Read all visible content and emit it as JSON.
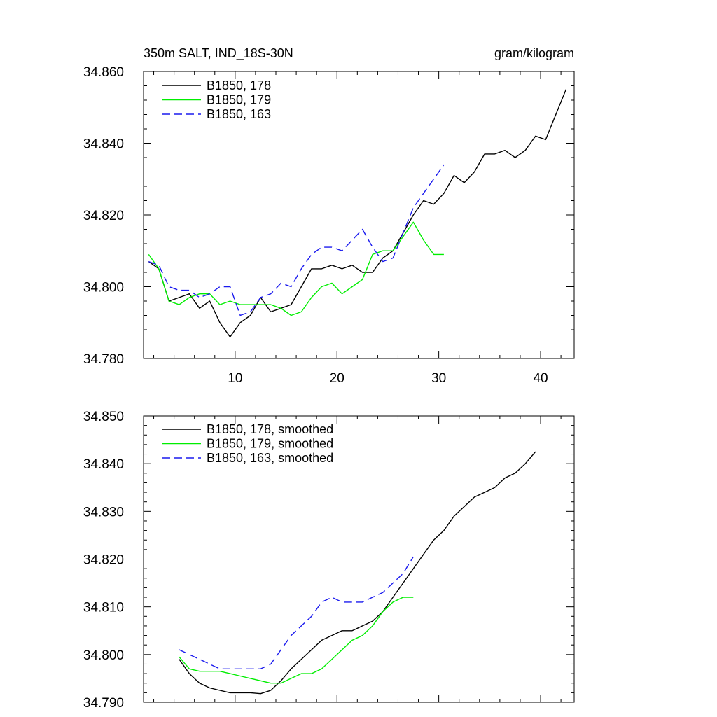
{
  "chart_data": [
    {
      "type": "line",
      "title": "350m SALT, IND_18S-30N",
      "units": "gram/kilogram",
      "xlim": [
        1,
        43.3
      ],
      "ylim": [
        34.78,
        34.86
      ],
      "xticks": [
        10,
        20,
        30,
        40
      ],
      "xtick_labels": [
        "10",
        "20",
        "30",
        "40"
      ],
      "yticks": [
        34.78,
        34.8,
        34.82,
        34.84,
        34.86
      ],
      "ytick_labels": [
        "34.780",
        "34.800",
        "34.820",
        "34.840",
        "34.860"
      ],
      "series": [
        {
          "name": "B1850, 178",
          "color": "#000000",
          "dashed": false,
          "x": [
            1.5,
            2.5,
            3.5,
            4.5,
            5.5,
            6.5,
            7.5,
            8.5,
            9.5,
            10.5,
            11.5,
            12.5,
            13.5,
            14.5,
            15.5,
            16.5,
            17.5,
            18.5,
            19.5,
            20.5,
            21.5,
            22.5,
            23.5,
            24.5,
            25.5,
            26.5,
            27.5,
            28.5,
            29.5,
            30.5,
            31.5,
            32.5,
            33.5,
            34.5,
            35.5,
            36.5,
            37.5,
            38.5,
            39.5,
            40.5,
            41.5,
            42.5
          ],
          "values": [
            34.807,
            34.805,
            34.796,
            34.797,
            34.798,
            34.794,
            34.796,
            34.79,
            34.786,
            34.79,
            34.792,
            34.797,
            34.793,
            34.794,
            34.795,
            34.8,
            34.805,
            34.805,
            34.806,
            34.805,
            34.806,
            34.804,
            34.804,
            34.808,
            34.81,
            34.815,
            34.82,
            34.824,
            34.823,
            34.826,
            34.831,
            34.829,
            34.832,
            34.837,
            34.837,
            34.838,
            34.836,
            34.838,
            34.842,
            34.841,
            34.848,
            34.855
          ]
        },
        {
          "name": "B1850, 179",
          "color": "#00ee00",
          "dashed": false,
          "x": [
            1.5,
            2.5,
            3.5,
            4.5,
            5.5,
            6.5,
            7.5,
            8.5,
            9.5,
            10.5,
            11.5,
            12.5,
            13.5,
            14.5,
            15.5,
            16.5,
            17.5,
            18.5,
            19.5,
            20.5,
            21.5,
            22.5,
            23.5,
            24.5,
            25.5,
            26.5,
            27.5,
            28.5,
            29.5,
            30.5
          ],
          "values": [
            34.809,
            34.805,
            34.796,
            34.795,
            34.797,
            34.798,
            34.798,
            34.795,
            34.796,
            34.795,
            34.795,
            34.795,
            34.795,
            34.794,
            34.792,
            34.793,
            34.797,
            34.8,
            34.801,
            34.798,
            34.8,
            34.802,
            34.809,
            34.81,
            34.81,
            34.814,
            34.818,
            34.813,
            34.809,
            34.809
          ]
        },
        {
          "name": "B1850, 163",
          "color": "#1a1aee",
          "dashed": true,
          "x": [
            1.5,
            2.5,
            3.5,
            4.5,
            5.5,
            6.5,
            7.5,
            8.5,
            9.5,
            10.5,
            11.5,
            12.5,
            13.5,
            14.5,
            15.5,
            16.5,
            17.5,
            18.5,
            19.5,
            20.5,
            21.5,
            22.5,
            23.5,
            24.5,
            25.5,
            26.5,
            27.5,
            28.5,
            29.5,
            30.5
          ],
          "values": [
            34.807,
            34.806,
            34.8,
            34.799,
            34.799,
            34.797,
            34.798,
            34.8,
            34.8,
            34.792,
            34.793,
            34.797,
            34.798,
            34.801,
            34.8,
            34.805,
            34.809,
            34.811,
            34.811,
            34.81,
            34.813,
            34.816,
            34.811,
            34.807,
            34.808,
            34.815,
            34.822,
            34.826,
            34.83,
            34.834
          ]
        }
      ]
    },
    {
      "type": "line",
      "title": "",
      "xlim": [
        1,
        43.3
      ],
      "ylim": [
        34.79,
        34.85
      ],
      "xticks": [
        10,
        20,
        30,
        40
      ],
      "xtick_labels": [],
      "yticks": [
        34.79,
        34.8,
        34.81,
        34.82,
        34.83,
        34.84,
        34.85
      ],
      "ytick_labels": [
        "34.790",
        "34.800",
        "34.810",
        "34.820",
        "34.830",
        "34.840",
        "34.850"
      ],
      "series": [
        {
          "name": "B1850, 178, smoothed",
          "color": "#000000",
          "dashed": false,
          "x": [
            4.5,
            5.5,
            6.5,
            7.5,
            8.5,
            9.5,
            10.5,
            11.5,
            12.5,
            13.5,
            14.5,
            15.5,
            16.5,
            17.5,
            18.5,
            19.5,
            20.5,
            21.5,
            22.5,
            23.5,
            24.5,
            25.5,
            26.5,
            27.5,
            28.5,
            29.5,
            30.5,
            31.5,
            32.5,
            33.5,
            34.5,
            35.5,
            36.5,
            37.5,
            38.5,
            39.5
          ],
          "values": [
            34.799,
            34.796,
            34.794,
            34.793,
            34.7925,
            34.792,
            34.792,
            34.792,
            34.7918,
            34.7925,
            34.7945,
            34.797,
            34.799,
            34.801,
            34.803,
            34.804,
            34.805,
            34.805,
            34.806,
            34.807,
            34.809,
            34.812,
            34.815,
            34.818,
            34.821,
            34.824,
            34.826,
            34.829,
            34.831,
            34.833,
            34.834,
            34.835,
            34.837,
            34.838,
            34.84,
            34.8425
          ]
        },
        {
          "name": "B1850, 179, smoothed",
          "color": "#00ee00",
          "dashed": false,
          "x": [
            4.5,
            5.5,
            6.5,
            7.5,
            8.5,
            9.5,
            10.5,
            11.5,
            12.5,
            13.5,
            14.5,
            15.5,
            16.5,
            17.5,
            18.5,
            19.5,
            20.5,
            21.5,
            22.5,
            23.5,
            24.5,
            25.5,
            26.5,
            27.5
          ],
          "values": [
            34.7995,
            34.797,
            34.7965,
            34.7965,
            34.7965,
            34.796,
            34.7955,
            34.795,
            34.7945,
            34.794,
            34.794,
            34.795,
            34.796,
            34.796,
            34.797,
            34.799,
            34.801,
            34.803,
            34.804,
            34.806,
            34.809,
            34.811,
            34.812,
            34.812
          ]
        },
        {
          "name": "B1850, 163, smoothed",
          "color": "#1a1aee",
          "dashed": true,
          "x": [
            4.5,
            5.5,
            6.5,
            7.5,
            8.5,
            9.5,
            10.5,
            11.5,
            12.5,
            13.5,
            14.5,
            15.5,
            16.5,
            17.5,
            18.5,
            19.5,
            20.5,
            21.5,
            22.5,
            23.5,
            24.5,
            25.5,
            26.5,
            27.5
          ],
          "values": [
            34.801,
            34.8,
            34.799,
            34.798,
            34.797,
            34.797,
            34.797,
            34.797,
            34.797,
            34.798,
            34.801,
            34.804,
            34.806,
            34.808,
            34.811,
            34.812,
            34.811,
            34.811,
            34.811,
            34.812,
            34.813,
            34.815,
            34.817,
            34.8205
          ]
        }
      ]
    }
  ]
}
